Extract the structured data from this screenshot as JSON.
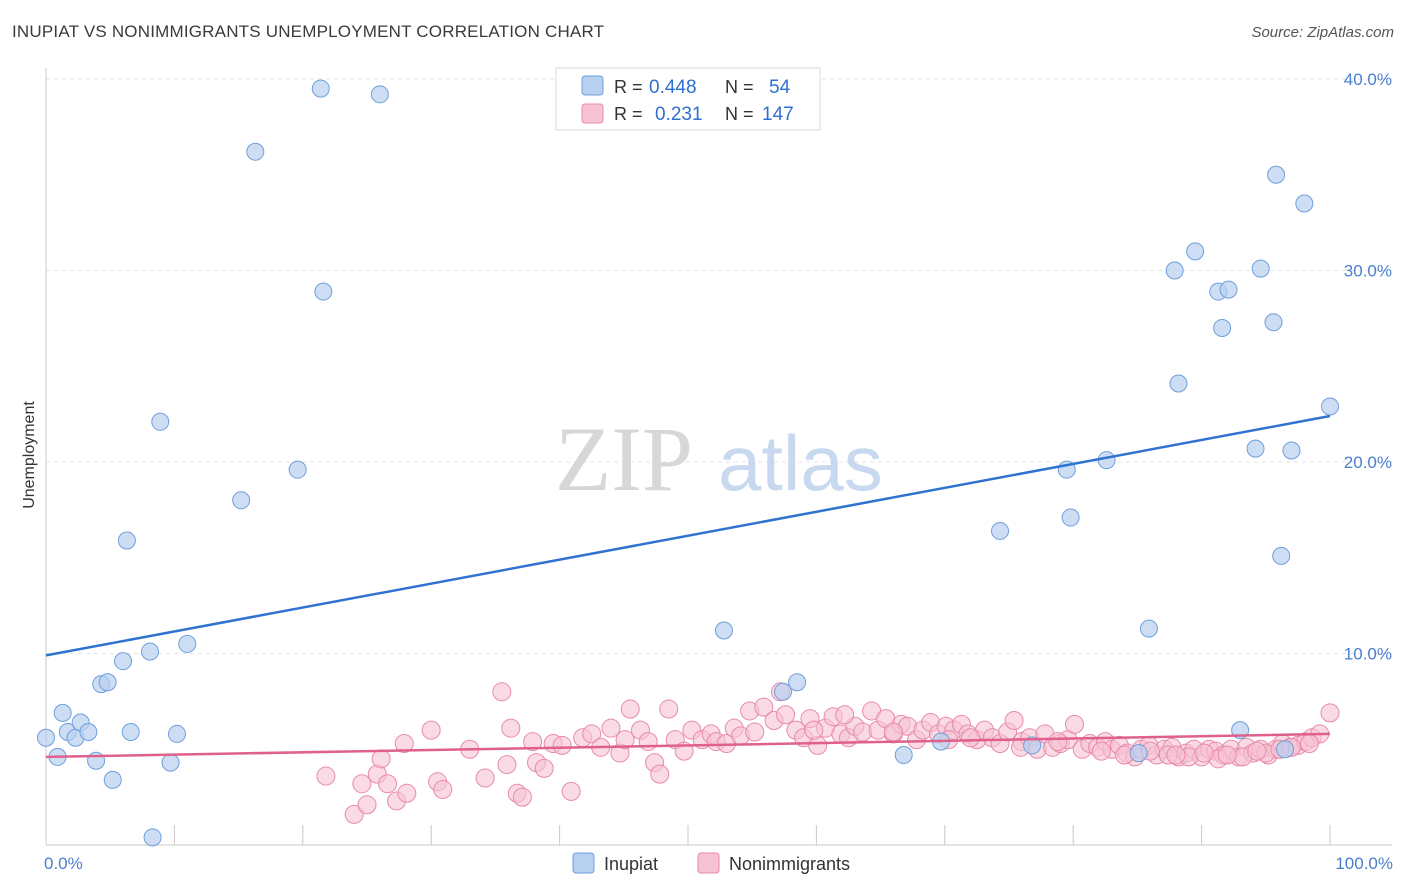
{
  "title": "INUPIAT VS NONIMMIGRANTS UNEMPLOYMENT CORRELATION CHART",
  "source": "Source: ZipAtlas.com",
  "watermark": {
    "part1": "ZIP",
    "part2": "atlas"
  },
  "legend_top": {
    "rows": [
      {
        "r_label": "R =",
        "r_value": "0.448",
        "n_label": "N =",
        "n_value": "54"
      },
      {
        "r_label": "R =",
        "r_value": "0.231",
        "n_label": "N =",
        "n_value": "147"
      }
    ]
  },
  "legend_bottom": [
    "Inupiat",
    "Nonimmigrants"
  ],
  "colors": {
    "inupiat_fill": "#b8d0f0",
    "inupiat_stroke": "#6f9fdc",
    "inupiat_line": "#2f72d0",
    "nonimm_fill": "#f7c3d3",
    "nonimm_stroke": "#e88aab",
    "nonimm_line": "#e0608c",
    "tick_text": "#4a7fcf",
    "grid": "#e3e3e3"
  },
  "chart_data": {
    "type": "scatter",
    "title": "INUPIAT VS NONIMMIGRANTS UNEMPLOYMENT CORRELATION CHART",
    "xlabel": "",
    "ylabel": "Unemployment",
    "xlim": [
      0,
      100
    ],
    "ylim": [
      0,
      40
    ],
    "x_tick_labels": [
      "0.0%",
      "100.0%"
    ],
    "y_ticks": [
      10,
      20,
      30,
      40
    ],
    "y_tick_labels": [
      "10.0%",
      "20.0%",
      "30.0%",
      "40.0%"
    ],
    "grid": true,
    "legend_position": "top-center",
    "series": [
      {
        "name": "Inupiat",
        "r": 0.448,
        "n": 54,
        "trend": {
          "x": [
            0,
            100
          ],
          "y": [
            9.9,
            22.4
          ]
        },
        "points": [
          [
            0.0,
            5.6
          ],
          [
            0.9,
            4.6
          ],
          [
            1.3,
            6.9
          ],
          [
            1.7,
            5.9
          ],
          [
            2.3,
            5.6
          ],
          [
            2.7,
            6.4
          ],
          [
            3.3,
            5.9
          ],
          [
            3.9,
            4.4
          ],
          [
            4.3,
            8.4
          ],
          [
            4.8,
            8.5
          ],
          [
            5.2,
            3.4
          ],
          [
            6.0,
            9.6
          ],
          [
            6.3,
            15.9
          ],
          [
            6.6,
            5.9
          ],
          [
            8.1,
            10.1
          ],
          [
            8.3,
            0.4
          ],
          [
            8.9,
            22.1
          ],
          [
            9.7,
            4.3
          ],
          [
            10.2,
            5.8
          ],
          [
            11.0,
            10.5
          ],
          [
            15.2,
            18.0
          ],
          [
            16.3,
            36.2
          ],
          [
            19.6,
            19.6
          ],
          [
            21.4,
            39.5
          ],
          [
            21.6,
            28.9
          ],
          [
            26.0,
            39.2
          ],
          [
            52.8,
            11.2
          ],
          [
            57.4,
            8.0
          ],
          [
            58.5,
            8.5
          ],
          [
            66.8,
            4.7
          ],
          [
            69.7,
            5.4
          ],
          [
            74.3,
            16.4
          ],
          [
            76.8,
            5.2
          ],
          [
            79.5,
            19.6
          ],
          [
            79.8,
            17.1
          ],
          [
            82.6,
            20.1
          ],
          [
            85.9,
            11.3
          ],
          [
            85.1,
            4.8
          ],
          [
            87.9,
            30.0
          ],
          [
            88.2,
            24.1
          ],
          [
            89.5,
            31.0
          ],
          [
            91.3,
            28.9
          ],
          [
            91.6,
            27.0
          ],
          [
            92.1,
            29.0
          ],
          [
            93.0,
            6.0
          ],
          [
            94.2,
            20.7
          ],
          [
            94.6,
            30.1
          ],
          [
            95.6,
            27.3
          ],
          [
            95.8,
            35.0
          ],
          [
            96.2,
            15.1
          ],
          [
            97.0,
            20.6
          ],
          [
            98.0,
            33.5
          ],
          [
            100.0,
            22.9
          ],
          [
            96.5,
            5.0
          ]
        ]
      },
      {
        "name": "Nonimmigrants",
        "r": 0.231,
        "n": 147,
        "trend": {
          "x": [
            0,
            100
          ],
          "y": [
            4.6,
            5.8
          ]
        },
        "points": [
          [
            21.8,
            3.6
          ],
          [
            24.0,
            1.6
          ],
          [
            24.6,
            3.2
          ],
          [
            25.0,
            2.1
          ],
          [
            25.8,
            3.7
          ],
          [
            26.1,
            4.5
          ],
          [
            26.6,
            3.2
          ],
          [
            27.3,
            2.3
          ],
          [
            27.9,
            5.3
          ],
          [
            28.1,
            2.7
          ],
          [
            30.0,
            6.0
          ],
          [
            30.5,
            3.3
          ],
          [
            30.9,
            2.9
          ],
          [
            33.0,
            5.0
          ],
          [
            34.2,
            3.5
          ],
          [
            35.5,
            8.0
          ],
          [
            35.9,
            4.2
          ],
          [
            36.2,
            6.1
          ],
          [
            36.7,
            2.7
          ],
          [
            37.1,
            2.5
          ],
          [
            37.9,
            5.4
          ],
          [
            38.2,
            4.3
          ],
          [
            38.8,
            4.0
          ],
          [
            39.5,
            5.3
          ],
          [
            40.2,
            5.2
          ],
          [
            40.9,
            2.8
          ],
          [
            41.8,
            5.6
          ],
          [
            42.5,
            5.8
          ],
          [
            43.2,
            5.1
          ],
          [
            44.0,
            6.1
          ],
          [
            44.7,
            4.8
          ],
          [
            45.1,
            5.5
          ],
          [
            45.5,
            7.1
          ],
          [
            46.3,
            6.0
          ],
          [
            46.9,
            5.4
          ],
          [
            47.4,
            4.3
          ],
          [
            47.8,
            3.7
          ],
          [
            48.5,
            7.1
          ],
          [
            49.0,
            5.5
          ],
          [
            49.7,
            4.9
          ],
          [
            50.3,
            6.0
          ],
          [
            51.1,
            5.5
          ],
          [
            51.8,
            5.8
          ],
          [
            52.2,
            5.4
          ],
          [
            53.0,
            5.3
          ],
          [
            53.6,
            6.1
          ],
          [
            54.1,
            5.7
          ],
          [
            54.8,
            7.0
          ],
          [
            55.2,
            5.9
          ],
          [
            55.9,
            7.2
          ],
          [
            56.7,
            6.5
          ],
          [
            57.2,
            8.0
          ],
          [
            57.6,
            6.8
          ],
          [
            58.4,
            6.0
          ],
          [
            59.0,
            5.6
          ],
          [
            59.5,
            6.6
          ],
          [
            60.1,
            5.2
          ],
          [
            60.7,
            6.1
          ],
          [
            61.3,
            6.7
          ],
          [
            61.9,
            5.8
          ],
          [
            62.5,
            5.6
          ],
          [
            63.0,
            6.2
          ],
          [
            63.6,
            5.9
          ],
          [
            64.3,
            7.0
          ],
          [
            64.8,
            6.0
          ],
          [
            65.4,
            6.6
          ],
          [
            66.0,
            5.8
          ],
          [
            66.6,
            6.3
          ],
          [
            67.1,
            6.2
          ],
          [
            67.8,
            5.5
          ],
          [
            68.3,
            6.0
          ],
          [
            68.9,
            6.4
          ],
          [
            69.5,
            5.8
          ],
          [
            70.1,
            6.2
          ],
          [
            70.7,
            6.0
          ],
          [
            71.3,
            6.3
          ],
          [
            71.8,
            5.8
          ],
          [
            72.5,
            5.5
          ],
          [
            73.1,
            6.0
          ],
          [
            73.7,
            5.6
          ],
          [
            74.3,
            5.3
          ],
          [
            74.9,
            5.9
          ],
          [
            75.4,
            6.5
          ],
          [
            76.0,
            5.4
          ],
          [
            76.6,
            5.6
          ],
          [
            77.2,
            5.0
          ],
          [
            77.8,
            5.8
          ],
          [
            78.4,
            5.1
          ],
          [
            79.0,
            5.3
          ],
          [
            79.6,
            5.5
          ],
          [
            80.1,
            6.3
          ],
          [
            80.7,
            5.0
          ],
          [
            81.3,
            5.3
          ],
          [
            81.9,
            5.1
          ],
          [
            82.5,
            5.4
          ],
          [
            83.0,
            5.0
          ],
          [
            83.6,
            5.2
          ],
          [
            84.2,
            4.8
          ],
          [
            84.8,
            4.6
          ],
          [
            85.3,
            5.0
          ],
          [
            85.9,
            5.2
          ],
          [
            86.5,
            4.7
          ],
          [
            87.1,
            5.0
          ],
          [
            87.7,
            5.1
          ],
          [
            88.2,
            4.6
          ],
          [
            88.8,
            4.8
          ],
          [
            89.4,
            5.0
          ],
          [
            90.0,
            4.6
          ],
          [
            90.6,
            5.0
          ],
          [
            91.1,
            4.9
          ],
          [
            91.7,
            4.7
          ],
          [
            92.3,
            5.0
          ],
          [
            92.9,
            4.6
          ],
          [
            93.5,
            5.1
          ],
          [
            94.0,
            4.8
          ],
          [
            94.6,
            5.0
          ],
          [
            95.2,
            4.7
          ],
          [
            95.8,
            5.0
          ],
          [
            96.3,
            5.3
          ],
          [
            96.9,
            5.1
          ],
          [
            97.5,
            5.2
          ],
          [
            98.1,
            5.4
          ],
          [
            98.6,
            5.6
          ],
          [
            99.2,
            5.8
          ],
          [
            100.0,
            6.9
          ],
          [
            87.4,
            4.7
          ],
          [
            89.0,
            4.6
          ],
          [
            91.3,
            4.5
          ],
          [
            93.2,
            4.6
          ],
          [
            95.0,
            4.8
          ],
          [
            97.0,
            5.1
          ],
          [
            62.2,
            6.8
          ],
          [
            70.3,
            5.5
          ],
          [
            75.9,
            5.1
          ],
          [
            78.8,
            5.4
          ],
          [
            82.2,
            4.9
          ],
          [
            84.0,
            4.7
          ],
          [
            86.0,
            4.9
          ],
          [
            88.0,
            4.7
          ],
          [
            90.2,
            4.8
          ],
          [
            92.0,
            4.7
          ],
          [
            94.3,
            4.9
          ],
          [
            96.1,
            5.0
          ],
          [
            98.4,
            5.3
          ],
          [
            72.0,
            5.6
          ],
          [
            66.0,
            5.9
          ],
          [
            59.8,
            6.0
          ]
        ]
      }
    ]
  }
}
